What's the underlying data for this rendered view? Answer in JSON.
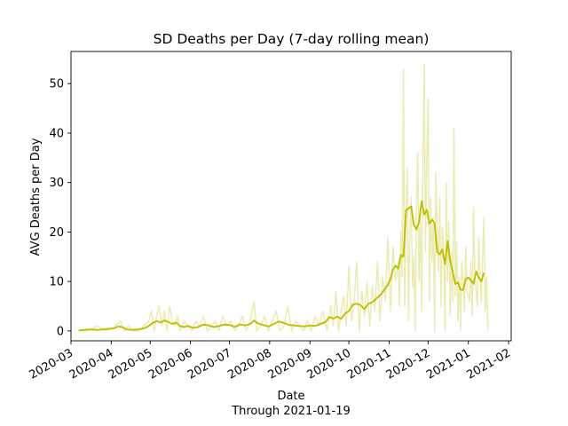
{
  "chart_data": {
    "type": "line",
    "title": "SD Deaths per Day (7-day rolling mean)",
    "xlabel": "Date",
    "xlabel_note": "Through 2021-01-19",
    "ylabel": "AVG Deaths per Day",
    "xlim": [
      "2020-03-01",
      "2021-02-03"
    ],
    "ylim": [
      -2,
      56.5
    ],
    "grid": false,
    "legend": "none",
    "x_ticks": [
      "2020-03",
      "2020-04",
      "2020-05",
      "2020-06",
      "2020-07",
      "2020-08",
      "2020-09",
      "2020-10",
      "2020-11",
      "2020-12",
      "2021-01",
      "2021-02"
    ],
    "y_ticks": [
      0,
      10,
      20,
      30,
      40,
      50
    ],
    "colors": {
      "raw": "#ecebb4",
      "mean": "#bfbf00"
    },
    "series": [
      {
        "role": "daily",
        "points": [
          [
            "2020-03-07",
            0
          ],
          [
            "2020-03-14",
            0
          ],
          [
            "2020-03-21",
            1
          ],
          [
            "2020-03-28",
            0
          ],
          [
            "2020-04-04",
            1
          ],
          [
            "2020-04-08",
            2
          ],
          [
            "2020-04-11",
            0
          ],
          [
            "2020-04-14",
            1
          ],
          [
            "2020-04-18",
            0
          ],
          [
            "2020-04-22",
            0
          ],
          [
            "2020-04-26",
            1
          ],
          [
            "2020-04-30",
            2
          ],
          [
            "2020-05-02",
            4
          ],
          [
            "2020-05-04",
            0
          ],
          [
            "2020-05-06",
            3
          ],
          [
            "2020-05-08",
            5
          ],
          [
            "2020-05-10",
            1
          ],
          [
            "2020-05-12",
            4
          ],
          [
            "2020-05-14",
            0
          ],
          [
            "2020-05-16",
            5
          ],
          [
            "2020-05-18",
            2
          ],
          [
            "2020-05-20",
            1
          ],
          [
            "2020-05-22",
            3
          ],
          [
            "2020-05-24",
            0
          ],
          [
            "2020-05-27",
            2
          ],
          [
            "2020-05-30",
            1
          ],
          [
            "2020-06-02",
            0
          ],
          [
            "2020-06-05",
            2
          ],
          [
            "2020-06-08",
            1
          ],
          [
            "2020-06-11",
            3
          ],
          [
            "2020-06-14",
            0
          ],
          [
            "2020-06-17",
            1
          ],
          [
            "2020-06-20",
            2
          ],
          [
            "2020-06-23",
            0
          ],
          [
            "2020-06-26",
            3
          ],
          [
            "2020-06-29",
            1
          ],
          [
            "2020-07-02",
            2
          ],
          [
            "2020-07-05",
            0
          ],
          [
            "2020-07-08",
            1
          ],
          [
            "2020-07-11",
            3
          ],
          [
            "2020-07-14",
            0
          ],
          [
            "2020-07-17",
            2
          ],
          [
            "2020-07-20",
            6
          ],
          [
            "2020-07-22",
            0
          ],
          [
            "2020-07-25",
            1
          ],
          [
            "2020-07-28",
            3
          ],
          [
            "2020-07-31",
            0
          ],
          [
            "2020-08-03",
            2
          ],
          [
            "2020-08-06",
            4
          ],
          [
            "2020-08-09",
            0
          ],
          [
            "2020-08-12",
            1
          ],
          [
            "2020-08-15",
            5
          ],
          [
            "2020-08-18",
            0
          ],
          [
            "2020-08-21",
            2
          ],
          [
            "2020-08-24",
            1
          ],
          [
            "2020-08-27",
            0
          ],
          [
            "2020-08-30",
            2
          ],
          [
            "2020-09-02",
            0
          ],
          [
            "2020-09-05",
            3
          ],
          [
            "2020-09-08",
            1
          ],
          [
            "2020-09-11",
            4
          ],
          [
            "2020-09-14",
            0
          ],
          [
            "2020-09-17",
            5
          ],
          [
            "2020-09-19",
            1
          ],
          [
            "2020-09-21",
            8
          ],
          [
            "2020-09-23",
            0
          ],
          [
            "2020-09-25",
            4
          ],
          [
            "2020-09-27",
            7
          ],
          [
            "2020-09-29",
            1
          ],
          [
            "2020-10-01",
            13
          ],
          [
            "2020-10-03",
            2
          ],
          [
            "2020-10-05",
            6
          ],
          [
            "2020-10-07",
            14
          ],
          [
            "2020-10-09",
            0
          ],
          [
            "2020-10-11",
            8
          ],
          [
            "2020-10-13",
            3
          ],
          [
            "2020-10-15",
            10
          ],
          [
            "2020-10-17",
            1
          ],
          [
            "2020-10-19",
            9
          ],
          [
            "2020-10-21",
            4
          ],
          [
            "2020-10-23",
            14
          ],
          [
            "2020-10-25",
            2
          ],
          [
            "2020-10-27",
            11
          ],
          [
            "2020-10-29",
            6
          ],
          [
            "2020-10-31",
            19
          ],
          [
            "2020-11-02",
            4
          ],
          [
            "2020-11-04",
            17
          ],
          [
            "2020-11-06",
            10
          ],
          [
            "2020-11-08",
            14
          ],
          [
            "2020-11-09",
            5
          ],
          [
            "2020-11-10",
            20
          ],
          [
            "2020-11-11",
            11
          ],
          [
            "2020-11-12",
            53
          ],
          [
            "2020-11-13",
            5
          ],
          [
            "2020-11-14",
            23
          ],
          [
            "2020-11-15",
            33
          ],
          [
            "2020-11-16",
            2
          ],
          [
            "2020-11-17",
            20
          ],
          [
            "2020-11-18",
            27
          ],
          [
            "2020-11-19",
            9
          ],
          [
            "2020-11-20",
            15
          ],
          [
            "2020-11-21",
            0
          ],
          [
            "2020-11-22",
            25
          ],
          [
            "2020-11-23",
            36
          ],
          [
            "2020-11-24",
            10
          ],
          [
            "2020-11-25",
            24
          ],
          [
            "2020-11-26",
            4
          ],
          [
            "2020-11-27",
            33
          ],
          [
            "2020-11-28",
            54
          ],
          [
            "2020-11-29",
            16
          ],
          [
            "2020-11-30",
            35
          ],
          [
            "2020-12-01",
            47
          ],
          [
            "2020-12-02",
            6
          ],
          [
            "2020-12-03",
            27
          ],
          [
            "2020-12-04",
            14
          ],
          [
            "2020-12-05",
            23
          ],
          [
            "2020-12-06",
            0
          ],
          [
            "2020-12-07",
            32
          ],
          [
            "2020-12-08",
            20
          ],
          [
            "2020-12-09",
            12
          ],
          [
            "2020-12-10",
            27
          ],
          [
            "2020-12-11",
            5
          ],
          [
            "2020-12-12",
            21
          ],
          [
            "2020-12-13",
            17
          ],
          [
            "2020-12-14",
            0
          ],
          [
            "2020-12-15",
            30
          ],
          [
            "2020-12-16",
            10
          ],
          [
            "2020-12-17",
            22
          ],
          [
            "2020-12-18",
            3
          ],
          [
            "2020-12-19",
            16
          ],
          [
            "2020-12-20",
            6
          ],
          [
            "2020-12-21",
            41
          ],
          [
            "2020-12-22",
            7
          ],
          [
            "2020-12-23",
            18
          ],
          [
            "2020-12-24",
            2
          ],
          [
            "2020-12-25",
            11
          ],
          [
            "2020-12-26",
            0
          ],
          [
            "2020-12-27",
            14
          ],
          [
            "2020-12-28",
            10
          ],
          [
            "2020-12-29",
            4
          ],
          [
            "2020-12-30",
            17
          ],
          [
            "2020-12-31",
            8
          ],
          [
            "2021-01-02",
            6
          ],
          [
            "2021-01-03",
            14
          ],
          [
            "2021-01-04",
            3
          ],
          [
            "2021-01-05",
            25
          ],
          [
            "2021-01-06",
            12
          ],
          [
            "2021-01-07",
            8
          ],
          [
            "2021-01-08",
            5
          ],
          [
            "2021-01-09",
            19
          ],
          [
            "2021-01-10",
            11
          ],
          [
            "2021-01-11",
            6
          ],
          [
            "2021-01-12",
            15
          ],
          [
            "2021-01-13",
            23
          ],
          [
            "2021-01-14",
            4
          ],
          [
            "2021-01-15",
            11
          ],
          [
            "2021-01-16",
            0
          ]
        ]
      },
      {
        "role": "rolling_mean",
        "points": [
          [
            "2020-03-07",
            0.1
          ],
          [
            "2020-03-15",
            0.3
          ],
          [
            "2020-03-22",
            0.2
          ],
          [
            "2020-03-29",
            0.4
          ],
          [
            "2020-04-03",
            0.5
          ],
          [
            "2020-04-06",
            0.9
          ],
          [
            "2020-04-09",
            0.8
          ],
          [
            "2020-04-13",
            0.3
          ],
          [
            "2020-04-17",
            0.2
          ],
          [
            "2020-04-22",
            0.3
          ],
          [
            "2020-04-26",
            0.5
          ],
          [
            "2020-04-30",
            1.0
          ],
          [
            "2020-05-03",
            1.6
          ],
          [
            "2020-05-06",
            2.0
          ],
          [
            "2020-05-09",
            1.7
          ],
          [
            "2020-05-12",
            2.1
          ],
          [
            "2020-05-15",
            1.8
          ],
          [
            "2020-05-18",
            1.4
          ],
          [
            "2020-05-21",
            1.7
          ],
          [
            "2020-05-24",
            1.0
          ],
          [
            "2020-05-27",
            0.8
          ],
          [
            "2020-05-30",
            1.0
          ],
          [
            "2020-06-03",
            0.6
          ],
          [
            "2020-06-07",
            0.8
          ],
          [
            "2020-06-11",
            1.3
          ],
          [
            "2020-06-15",
            1.1
          ],
          [
            "2020-06-19",
            0.8
          ],
          [
            "2020-06-23",
            1.0
          ],
          [
            "2020-06-27",
            1.3
          ],
          [
            "2020-07-01",
            1.2
          ],
          [
            "2020-07-05",
            0.8
          ],
          [
            "2020-07-09",
            1.3
          ],
          [
            "2020-07-13",
            1.1
          ],
          [
            "2020-07-17",
            1.4
          ],
          [
            "2020-07-20",
            2.1
          ],
          [
            "2020-07-23",
            1.5
          ],
          [
            "2020-07-27",
            1.2
          ],
          [
            "2020-07-31",
            0.9
          ],
          [
            "2020-08-04",
            1.4
          ],
          [
            "2020-08-08",
            1.9
          ],
          [
            "2020-08-12",
            1.6
          ],
          [
            "2020-08-16",
            1.2
          ],
          [
            "2020-08-20",
            1.1
          ],
          [
            "2020-08-24",
            1.0
          ],
          [
            "2020-08-28",
            0.9
          ],
          [
            "2020-09-01",
            1.1
          ],
          [
            "2020-09-05",
            1.0
          ],
          [
            "2020-09-09",
            1.4
          ],
          [
            "2020-09-13",
            1.8
          ],
          [
            "2020-09-16",
            2.8
          ],
          [
            "2020-09-19",
            2.5
          ],
          [
            "2020-09-22",
            2.9
          ],
          [
            "2020-09-25",
            2.4
          ],
          [
            "2020-09-28",
            3.5
          ],
          [
            "2020-10-01",
            4.0
          ],
          [
            "2020-10-04",
            5.3
          ],
          [
            "2020-10-07",
            5.5
          ],
          [
            "2020-10-10",
            5.2
          ],
          [
            "2020-10-13",
            4.4
          ],
          [
            "2020-10-16",
            5.5
          ],
          [
            "2020-10-19",
            5.8
          ],
          [
            "2020-10-22",
            6.5
          ],
          [
            "2020-10-25",
            7.2
          ],
          [
            "2020-10-28",
            8.2
          ],
          [
            "2020-10-31",
            9.3
          ],
          [
            "2020-11-02",
            10.5
          ],
          [
            "2020-11-04",
            12.5
          ],
          [
            "2020-11-06",
            13.2
          ],
          [
            "2020-11-08",
            12.6
          ],
          [
            "2020-11-10",
            15.3
          ],
          [
            "2020-11-12",
            15.0
          ],
          [
            "2020-11-14",
            24.4
          ],
          [
            "2020-11-16",
            24.8
          ],
          [
            "2020-11-18",
            25.2
          ],
          [
            "2020-11-20",
            21.5
          ],
          [
            "2020-11-22",
            20.5
          ],
          [
            "2020-11-24",
            22.0
          ],
          [
            "2020-11-26",
            26.2
          ],
          [
            "2020-11-28",
            23.5
          ],
          [
            "2020-11-30",
            24.5
          ],
          [
            "2020-12-02",
            21.7
          ],
          [
            "2020-12-04",
            22.5
          ],
          [
            "2020-12-06",
            21.8
          ],
          [
            "2020-12-08",
            16.0
          ],
          [
            "2020-12-10",
            15.5
          ],
          [
            "2020-12-12",
            16.5
          ],
          [
            "2020-12-14",
            13.5
          ],
          [
            "2020-12-16",
            18.2
          ],
          [
            "2020-12-18",
            14.2
          ],
          [
            "2020-12-20",
            11.8
          ],
          [
            "2020-12-22",
            9.5
          ],
          [
            "2020-12-24",
            9.8
          ],
          [
            "2020-12-26",
            8.3
          ],
          [
            "2020-12-28",
            8.3
          ],
          [
            "2020-12-30",
            10.5
          ],
          [
            "2021-01-01",
            10.8
          ],
          [
            "2021-01-03",
            10.2
          ],
          [
            "2021-01-05",
            9.5
          ],
          [
            "2021-01-07",
            12.0
          ],
          [
            "2021-01-09",
            10.8
          ],
          [
            "2021-01-11",
            10.0
          ],
          [
            "2021-01-13",
            11.8
          ]
        ]
      }
    ]
  }
}
